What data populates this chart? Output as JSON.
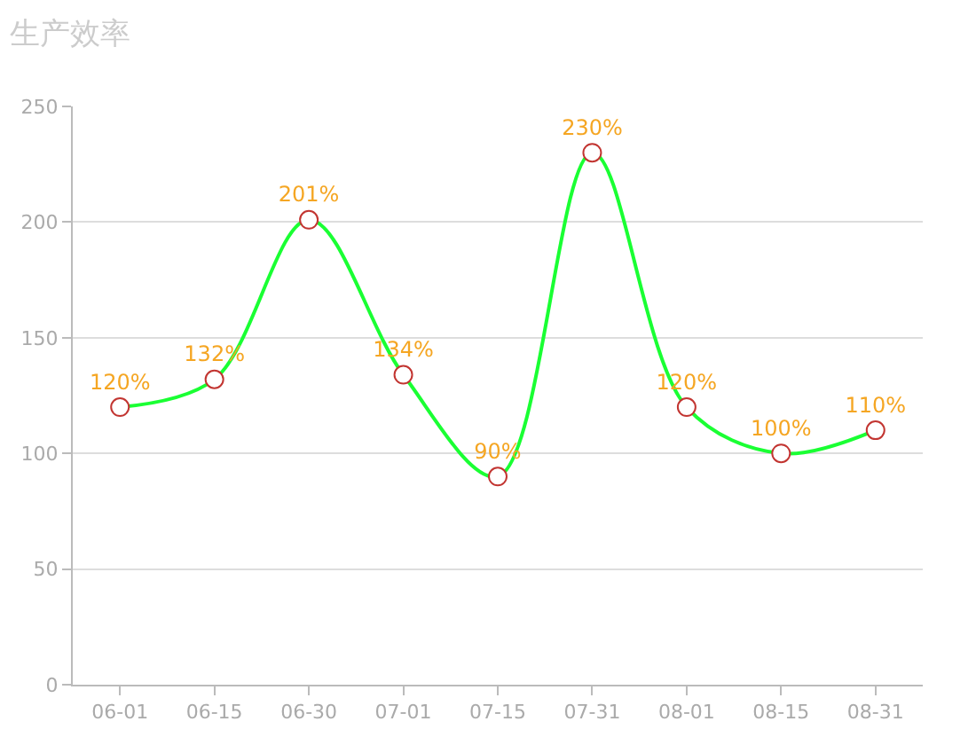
{
  "chart_data": {
    "type": "line",
    "title": "生产效率",
    "categories": [
      "06-01",
      "06-15",
      "06-30",
      "07-01",
      "07-15",
      "07-31",
      "08-01",
      "08-15",
      "08-31"
    ],
    "series": [
      {
        "color": "#1aff33",
        "values": [
          120,
          132,
          201,
          134,
          90,
          230,
          120,
          100,
          110
        ],
        "value_labels": [
          "120%",
          "132%",
          "201%",
          "134%",
          "90%",
          "230%",
          "120%",
          "100%",
          "110%"
        ]
      }
    ],
    "ylim": [
      0,
      250
    ],
    "yticks": [
      0,
      50,
      100,
      150,
      200,
      250
    ],
    "grid": "y",
    "marker": "circle",
    "line_style": "solid"
  }
}
